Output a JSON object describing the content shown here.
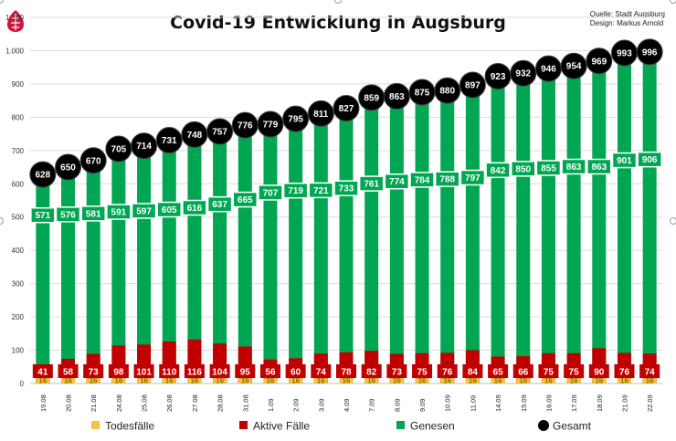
{
  "chart_data": {
    "type": "bar",
    "title": "Covid-19 Entwicklung in Augsburg",
    "source_lines": [
      "Quelle: Stadt Augsburg",
      "Design: Markus Arnold"
    ],
    "categories": [
      "19.08",
      "20.08",
      "21.08",
      "24.08",
      "25.08",
      "26.08",
      "27.08",
      "28.08",
      "31.08",
      "1.09",
      "2.09",
      "3.09",
      "4.09",
      "7.09",
      "8.09",
      "9.09",
      "10.09",
      "11.09",
      "14.09",
      "15.09",
      "16.09",
      "17.09",
      "18.09",
      "21.09",
      "22.09"
    ],
    "ylim": [
      0,
      1100
    ],
    "yticks": [
      0,
      100,
      200,
      300,
      400,
      500,
      600,
      700,
      800,
      900,
      1000,
      1100
    ],
    "ytick_labels": [
      "0",
      "100",
      "200",
      "300",
      "400",
      "500",
      "600",
      "700",
      "800",
      "900",
      "1.000",
      "1.100"
    ],
    "series": [
      {
        "name": "Todesfälle",
        "color": "#f5c342",
        "values": [
          16,
          16,
          16,
          16,
          16,
          16,
          16,
          16,
          16,
          16,
          16,
          16,
          16,
          16,
          16,
          16,
          16,
          16,
          16,
          16,
          16,
          16,
          16,
          16,
          16
        ]
      },
      {
        "name": "Aktive Fälle",
        "color": "#c00000",
        "values": [
          41,
          58,
          73,
          98,
          101,
          110,
          116,
          104,
          95,
          56,
          60,
          74,
          78,
          82,
          73,
          75,
          76,
          84,
          65,
          66,
          75,
          75,
          90,
          76,
          74
        ]
      },
      {
        "name": "Genesen",
        "color": "#00a651",
        "values": [
          571,
          576,
          581,
          591,
          597,
          605,
          616,
          637,
          665,
          707,
          719,
          721,
          733,
          761,
          774,
          784,
          788,
          797,
          842,
          850,
          855,
          863,
          863,
          901,
          906
        ]
      },
      {
        "name": "Gesamt",
        "color": "#000000",
        "values": [
          628,
          650,
          670,
          705,
          714,
          731,
          748,
          757,
          776,
          779,
          795,
          811,
          827,
          859,
          863,
          875,
          880,
          897,
          923,
          932,
          946,
          954,
          969,
          993,
          996
        ]
      }
    ],
    "legend_position": "bottom",
    "grid": true
  }
}
